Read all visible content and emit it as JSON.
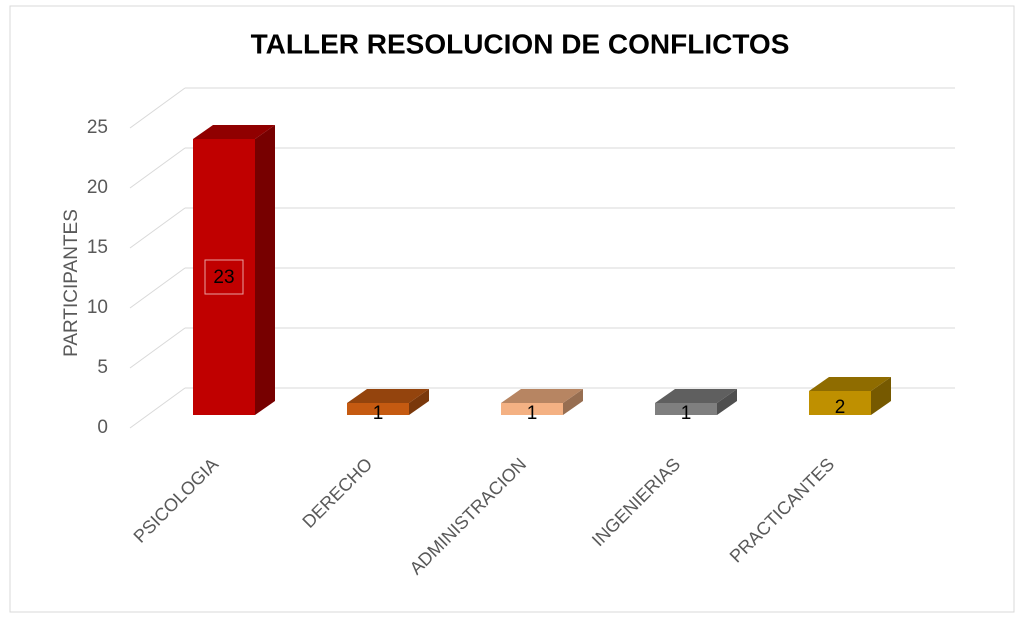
{
  "chart_data": {
    "type": "bar3d",
    "title": "TALLER RESOLUCION DE CONFLICTOS",
    "y_label": "PARTICIPANTES",
    "categories": [
      "PSICOLOGIA",
      "DERECHO",
      "ADMINISTRACION",
      "INGENIERIAS",
      "PRACTICANTES"
    ],
    "values": [
      23,
      1,
      1,
      1,
      2
    ],
    "colors": [
      "#c00000",
      "#c55a11",
      "#f4b183",
      "#7f7f7f",
      "#bf9000"
    ],
    "ylim": [
      0,
      25
    ],
    "yticks": [
      0,
      5,
      10,
      15,
      20,
      25
    ],
    "grid": true
  }
}
